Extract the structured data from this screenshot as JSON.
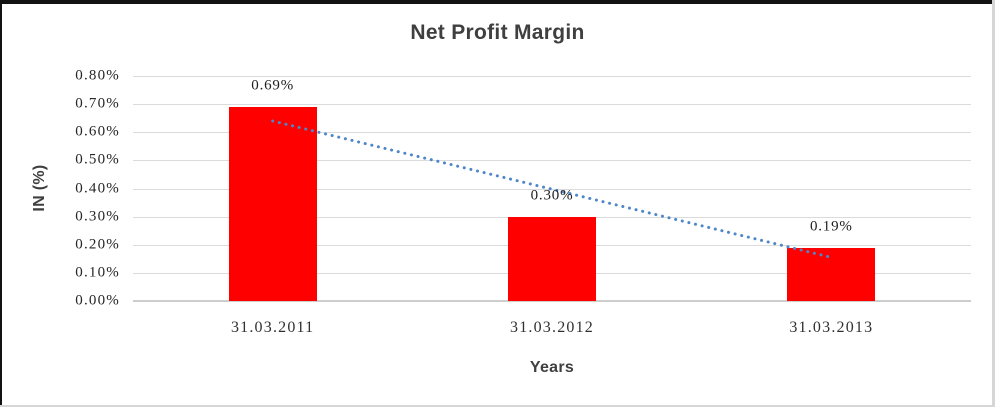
{
  "chart_data": {
    "type": "bar",
    "title": "Net Profit Margin",
    "xlabel": "Years",
    "ylabel": "IN (%)",
    "unit": "%",
    "categories": [
      "31.03.2011",
      "31.03.2012",
      "31.03.2013"
    ],
    "values": [
      0.69,
      0.3,
      0.19
    ],
    "data_labels": [
      "0.69%",
      "0.30%",
      "0.19%"
    ],
    "ylim": [
      0,
      0.8
    ],
    "ytick_step": 0.1,
    "ytick_labels_top_to_bottom": [
      "0.80%",
      "0.70%",
      "0.60%",
      "0.50%",
      "0.40%",
      "0.30%",
      "0.20%",
      "0.10%",
      "0.00%"
    ],
    "grid": true,
    "legend": "none",
    "bar_color": "#FE0000",
    "gridline_color": "#DBDBDB",
    "text_color_titles": "#3F3F3F",
    "text_color_values": "#262626",
    "trendline": {
      "type": "linear",
      "style": "dotted",
      "color": "#4E86C8",
      "start_category_index": 0,
      "start_value": 0.64,
      "end_category_index": 2,
      "end_value": 0.155
    }
  }
}
